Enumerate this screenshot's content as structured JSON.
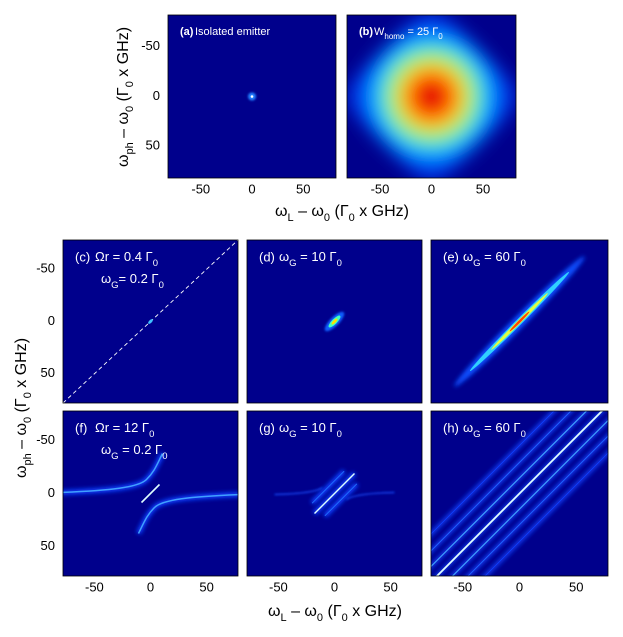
{
  "top": {
    "y_title": [
      "ω",
      "ph",
      " – ω",
      "0",
      " (Γ",
      "0",
      " x GHz)"
    ],
    "x_title": [
      "ω",
      "L",
      " – ω",
      "0",
      " (Γ",
      "0",
      " x GHz)"
    ],
    "xlim": [
      -82,
      82
    ],
    "ylim": [
      -82,
      82
    ],
    "y_inverted": true,
    "xticks": [
      -50,
      0,
      50
    ],
    "yticks": [
      -50,
      0,
      50
    ],
    "panels": [
      {
        "tag": "(a)",
        "lines": [
          [
            " Isolated emitter"
          ]
        ]
      },
      {
        "tag": "(b)",
        "lines": [
          [
            " W",
            "homo",
            " = 25 Γ",
            "0"
          ]
        ]
      }
    ]
  },
  "bottom": {
    "y_title": [
      "ω",
      "ph",
      " – ω",
      "0",
      " (Γ",
      "0",
      " x GHz)"
    ],
    "x_title": [
      "ω",
      "L",
      " – ω",
      "0",
      " (Γ",
      "0",
      " x GHz)"
    ],
    "xlim": [
      -78,
      78
    ],
    "ylim": [
      -78,
      78
    ],
    "y_inverted": true,
    "xticks": [
      -50,
      0,
      50
    ],
    "yticks": [
      -50,
      0,
      50
    ],
    "panels": [
      {
        "tag": "(c)",
        "lines": [
          [
            " Ωr = 0.4 Γ",
            "0"
          ],
          [
            "ω",
            "G",
            "= 0.2 Γ",
            "0"
          ]
        ]
      },
      {
        "tag": "(d)",
        "lines": [
          [
            " ω",
            "G",
            " = 10 Γ",
            "0"
          ]
        ]
      },
      {
        "tag": "(e)",
        "lines": [
          [
            " ω",
            "G",
            " = 60 Γ",
            "0"
          ]
        ]
      },
      {
        "tag": "(f)",
        "lines": [
          [
            " Ωr = 12 Γ",
            "0"
          ],
          [
            "ω",
            "G",
            " = 0.2 Γ",
            "0"
          ]
        ]
      },
      {
        "tag": "(g)",
        "lines": [
          [
            " ω",
            "G",
            " = 10 Γ",
            "0"
          ]
        ]
      },
      {
        "tag": "(h)",
        "lines": [
          [
            " ω",
            "G",
            " = 60 Γ",
            "0"
          ]
        ]
      }
    ]
  }
}
